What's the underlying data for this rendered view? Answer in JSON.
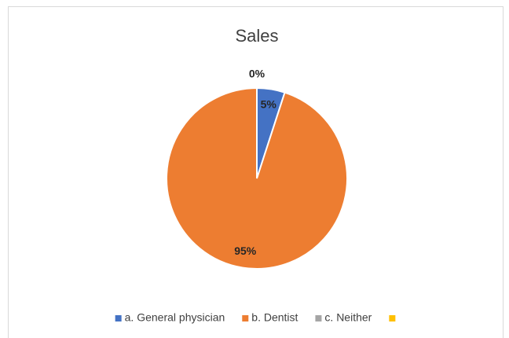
{
  "chart_data": {
    "type": "pie",
    "title": "Sales",
    "categories": [
      "a. General physician",
      "b. Dentist",
      "c. Neither",
      null
    ],
    "values": [
      5,
      95,
      0,
      0
    ],
    "value_labels": [
      "5%",
      "95%",
      "0%",
      null
    ],
    "colors": [
      "#4472c4",
      "#ed7d31",
      "#a5a5a5",
      "#ffc000"
    ],
    "legend": "bottom"
  }
}
